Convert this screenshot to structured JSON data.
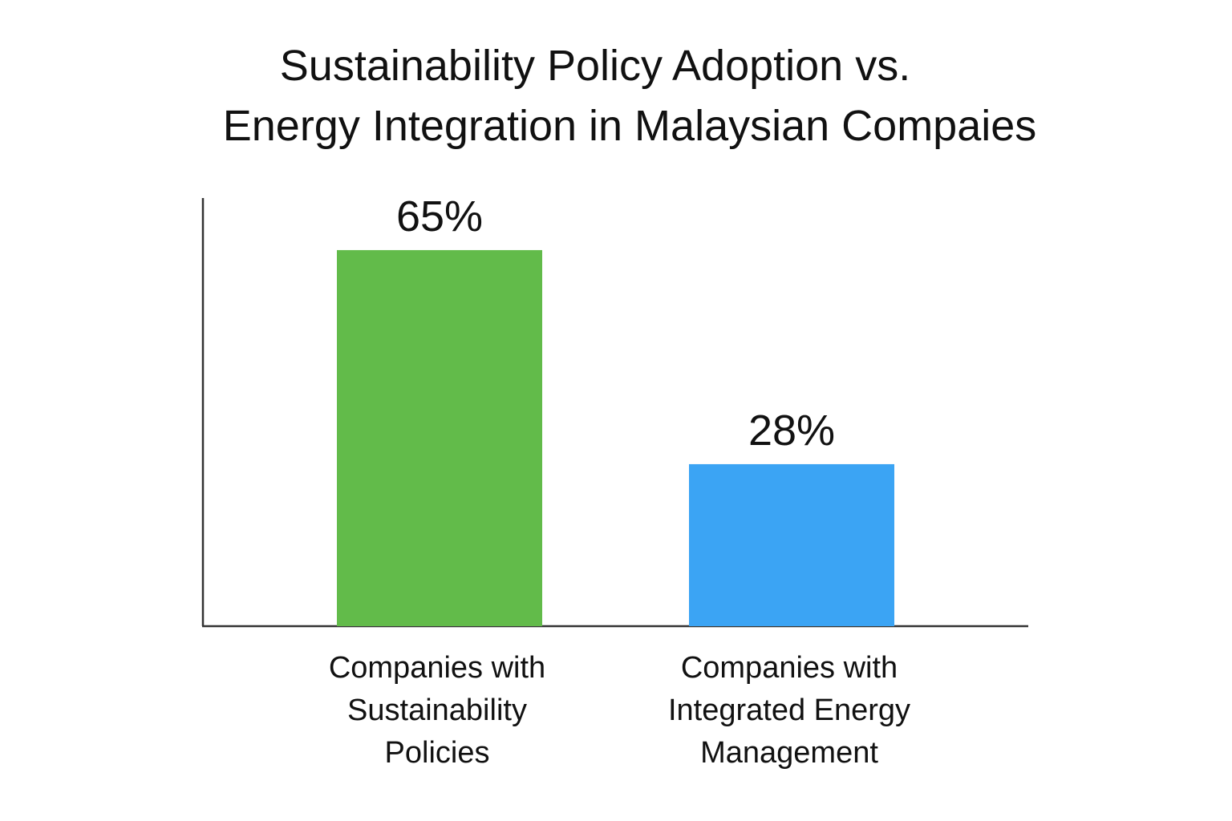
{
  "chart_data": {
    "type": "bar",
    "title": "Sustainability Policy Adoption vs. Energy Integration in Malaysian Compaies",
    "title_lines": [
      "Sustainability Policy Adoption vs.",
      "Energy Integration in Malaysian Compaies"
    ],
    "categories": [
      "Companies with Sustainability Policies",
      "Companies with Integrated Energy Management"
    ],
    "category_lines": [
      [
        "Companies with",
        "Sustainability",
        "Policies"
      ],
      [
        "Companies with",
        "Integrated Energy",
        "Management"
      ]
    ],
    "values": [
      65,
      28
    ],
    "value_labels": [
      "65%",
      "28%"
    ],
    "colors": [
      "#62BB4A",
      "#3BA4F4"
    ],
    "ylim": [
      0,
      74
    ],
    "grid": false,
    "legend": "none"
  }
}
